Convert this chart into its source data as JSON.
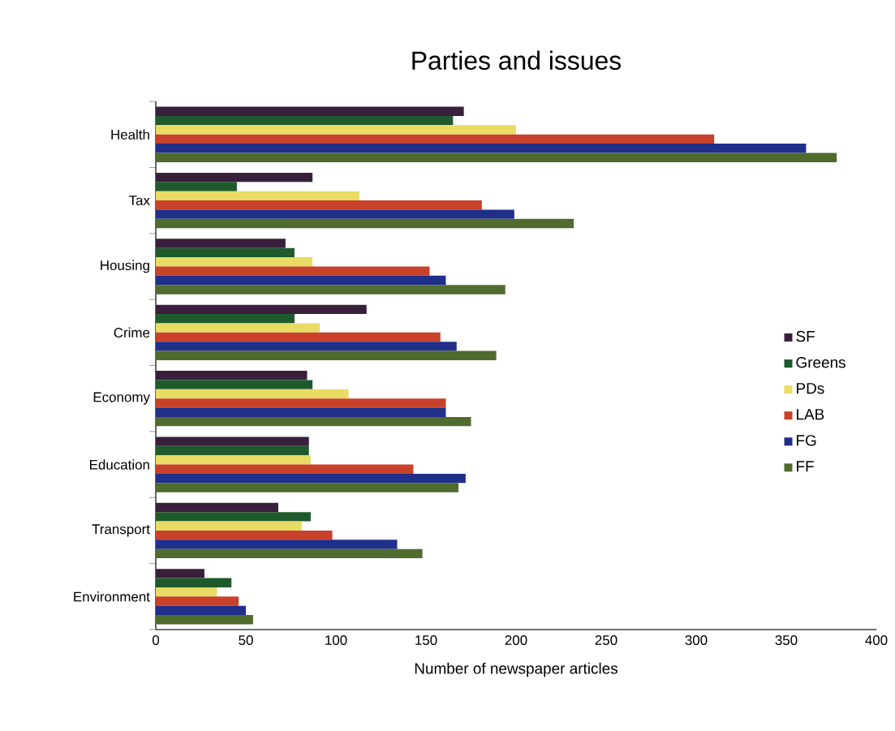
{
  "chart_data": {
    "type": "bar",
    "orientation": "horizontal",
    "title": "Parties and issues",
    "xlabel": "Number of newspaper articles",
    "categories": [
      "Health",
      "Tax",
      "Housing",
      "Crime",
      "Economy",
      "Education",
      "Transport",
      "Environment"
    ],
    "series": [
      {
        "name": "SF",
        "color": "#3a1f3d",
        "values": [
          171,
          87,
          72,
          117,
          84,
          85,
          68,
          27
        ]
      },
      {
        "name": "Greens",
        "color": "#1f5a2c",
        "values": [
          165,
          45,
          77,
          77,
          87,
          85,
          86,
          42
        ]
      },
      {
        "name": "PDs",
        "color": "#e8dc64",
        "values": [
          200,
          113,
          87,
          91,
          107,
          86,
          81,
          34
        ]
      },
      {
        "name": "LAB",
        "color": "#c8412a",
        "values": [
          310,
          181,
          152,
          158,
          161,
          143,
          98,
          46
        ]
      },
      {
        "name": "FG",
        "color": "#1f2f8a",
        "values": [
          361,
          199,
          161,
          167,
          161,
          172,
          134,
          50
        ]
      },
      {
        "name": "FF",
        "color": "#4f6b2e",
        "values": [
          378,
          232,
          194,
          189,
          175,
          168,
          148,
          54
        ]
      }
    ],
    "xlim": [
      0,
      400
    ],
    "xticks": [
      0,
      50,
      100,
      150,
      200,
      250,
      300,
      350,
      400
    ],
    "grid": false,
    "legend": "right"
  }
}
